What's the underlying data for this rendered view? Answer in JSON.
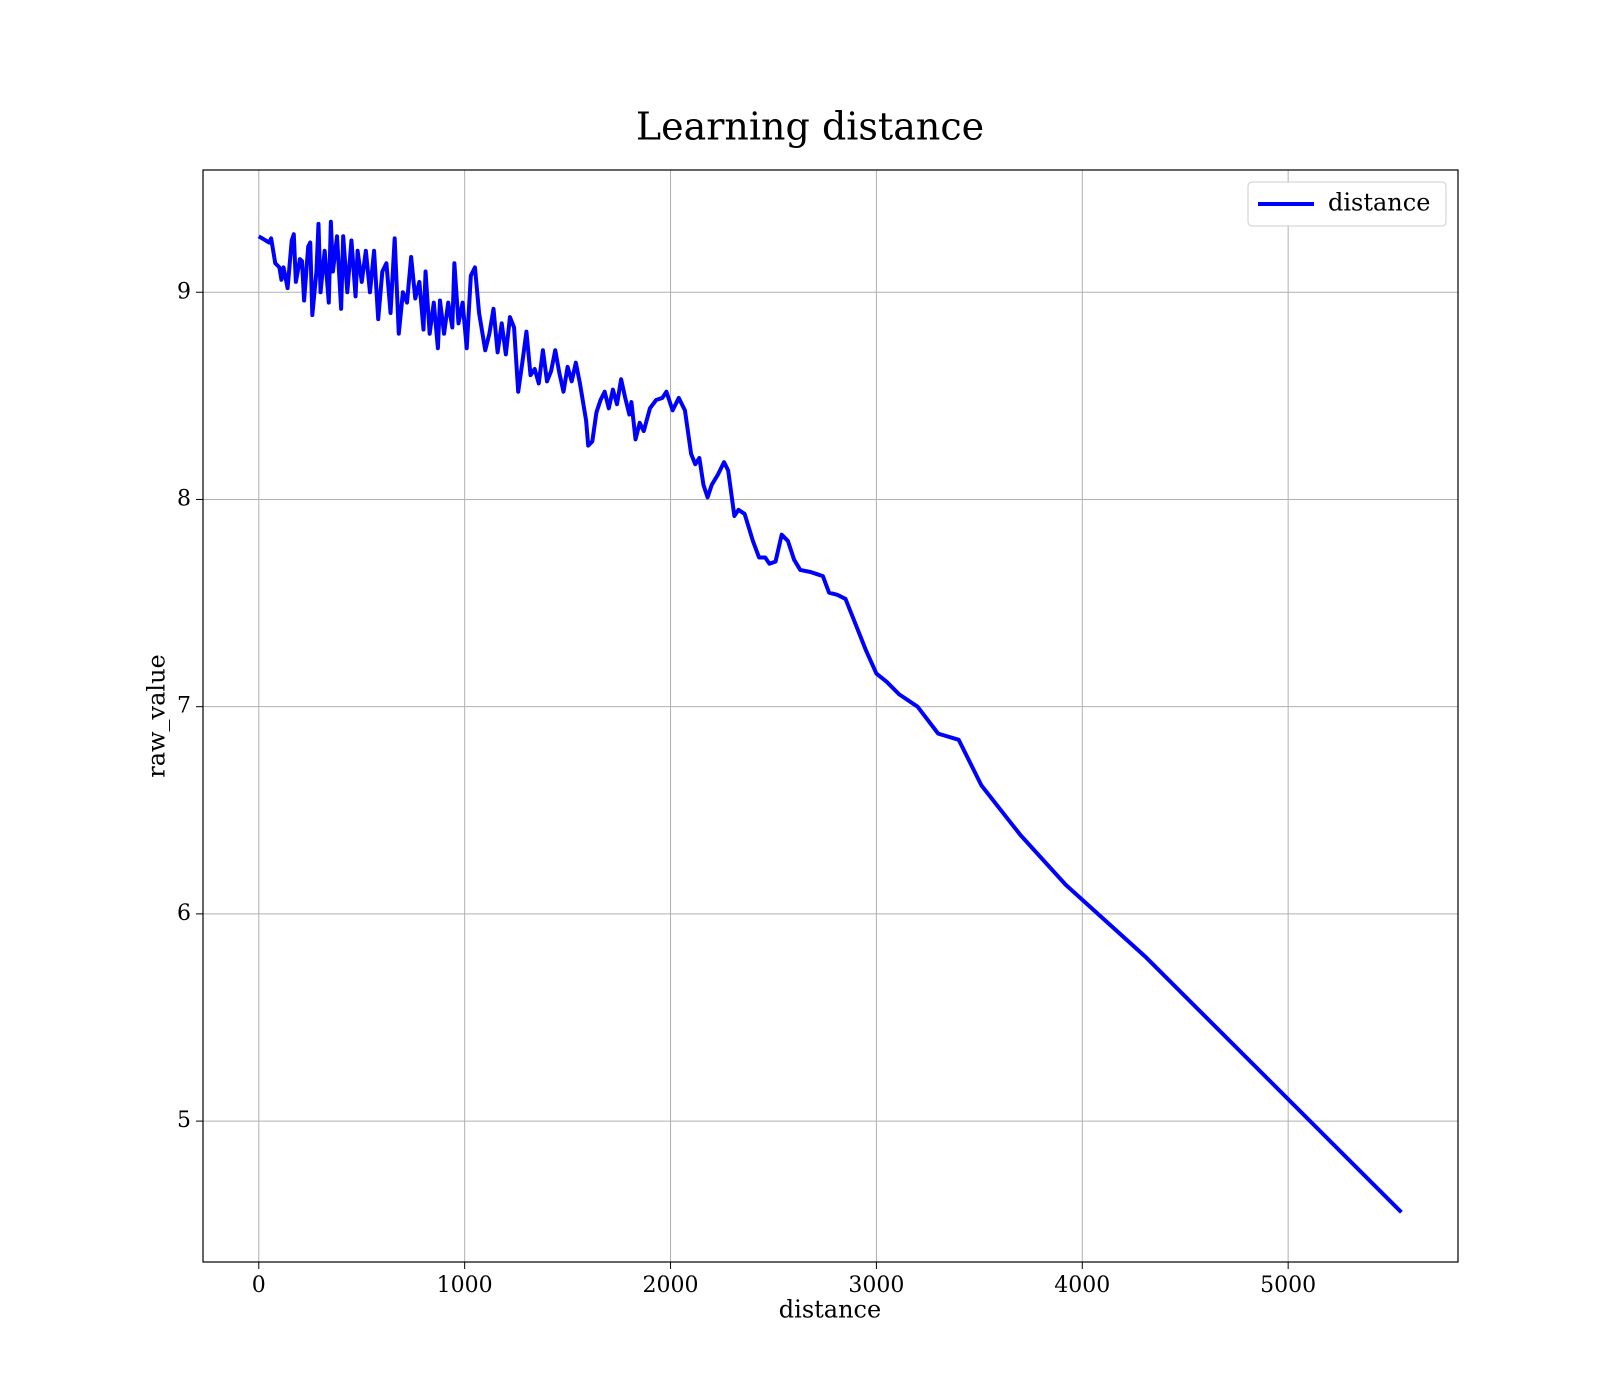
{
  "chart_data": {
    "type": "line",
    "title": "Learning distance",
    "x_label": "distance",
    "y_label": "raw_value",
    "x": [
      0,
      50,
      60,
      80,
      100,
      110,
      120,
      140,
      160,
      170,
      180,
      200,
      210,
      220,
      240,
      250,
      260,
      280,
      290,
      300,
      320,
      340,
      350,
      360,
      380,
      400,
      410,
      430,
      450,
      470,
      480,
      500,
      520,
      540,
      560,
      580,
      600,
      620,
      640,
      660,
      680,
      700,
      720,
      740,
      760,
      780,
      800,
      810,
      830,
      850,
      870,
      880,
      900,
      920,
      940,
      950,
      970,
      990,
      1010,
      1030,
      1050,
      1070,
      1100,
      1120,
      1140,
      1160,
      1180,
      1200,
      1220,
      1240,
      1260,
      1280,
      1300,
      1320,
      1340,
      1360,
      1380,
      1400,
      1420,
      1440,
      1460,
      1480,
      1500,
      1520,
      1540,
      1560,
      1590,
      1600,
      1620,
      1640,
      1660,
      1680,
      1700,
      1720,
      1740,
      1760,
      1780,
      1800,
      1810,
      1830,
      1850,
      1870,
      1900,
      1930,
      1960,
      1980,
      2010,
      2040,
      2070,
      2100,
      2120,
      2140,
      2160,
      2180,
      2200,
      2230,
      2260,
      2280,
      2310,
      2330,
      2360,
      2400,
      2430,
      2460,
      2480,
      2510,
      2540,
      2570,
      2600,
      2630,
      2680,
      2710,
      2740,
      2770,
      2810,
      2850,
      2950,
      3000,
      3050,
      3110,
      3200,
      3300,
      3400,
      3510,
      3700,
      3920,
      4310,
      5550
    ],
    "series": [
      {
        "name": "distance",
        "color": "#0000ff",
        "values": [
          9.27,
          9.24,
          9.26,
          9.14,
          9.12,
          9.06,
          9.12,
          9.02,
          9.25,
          9.28,
          9.05,
          9.16,
          9.15,
          8.96,
          9.22,
          9.24,
          8.89,
          9.1,
          9.33,
          9.0,
          9.2,
          8.95,
          9.34,
          9.1,
          9.27,
          8.92,
          9.27,
          9.0,
          9.25,
          8.98,
          9.2,
          9.05,
          9.2,
          9.0,
          9.2,
          8.87,
          9.1,
          9.14,
          8.9,
          9.26,
          8.8,
          9.0,
          8.95,
          9.17,
          8.97,
          9.05,
          8.82,
          9.1,
          8.8,
          8.95,
          8.73,
          8.96,
          8.8,
          8.95,
          8.83,
          9.14,
          8.85,
          8.95,
          8.73,
          9.08,
          9.12,
          8.9,
          8.72,
          8.8,
          8.92,
          8.71,
          8.85,
          8.7,
          8.88,
          8.83,
          8.52,
          8.66,
          8.81,
          8.6,
          8.63,
          8.56,
          8.72,
          8.57,
          8.62,
          8.72,
          8.61,
          8.52,
          8.64,
          8.57,
          8.66,
          8.56,
          8.38,
          8.26,
          8.28,
          8.42,
          8.48,
          8.52,
          8.44,
          8.53,
          8.46,
          8.58,
          8.49,
          8.41,
          8.47,
          8.29,
          8.37,
          8.33,
          8.44,
          8.48,
          8.49,
          8.52,
          8.43,
          8.49,
          8.43,
          8.22,
          8.17,
          8.2,
          8.07,
          8.01,
          8.07,
          8.12,
          8.18,
          8.14,
          7.92,
          7.95,
          7.93,
          7.8,
          7.72,
          7.72,
          7.69,
          7.7,
          7.83,
          7.8,
          7.71,
          7.66,
          7.65,
          7.64,
          7.63,
          7.55,
          7.54,
          7.52,
          7.27,
          7.16,
          7.12,
          7.06,
          7.0,
          6.87,
          6.84,
          6.62,
          6.38,
          6.14,
          5.79,
          4.56
        ]
      }
    ],
    "xlim": [
      -271,
      5825
    ],
    "ylim": [
      4.32,
      9.59
    ],
    "xticks": [
      0,
      1000,
      2000,
      3000,
      4000,
      5000
    ],
    "yticks": [
      5,
      6,
      7,
      8,
      9
    ],
    "grid": true,
    "legend": "upper right"
  }
}
